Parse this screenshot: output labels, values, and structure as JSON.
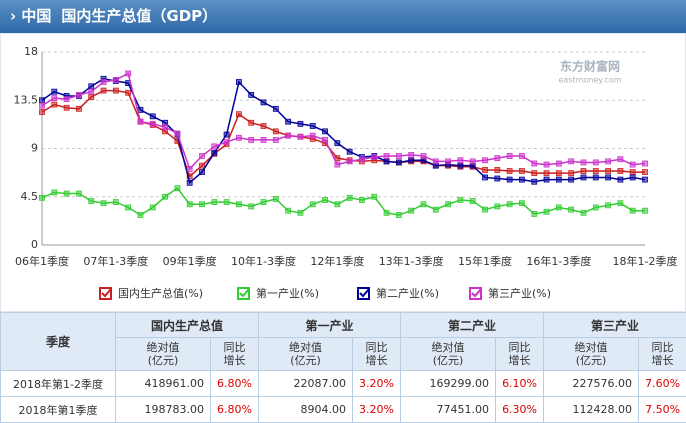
{
  "header": {
    "region": "中国",
    "title": "国内生产总值（GDP）"
  },
  "watermark": {
    "name": "东方财富网",
    "url": "eastmoney.com"
  },
  "chart_data": {
    "type": "line",
    "categories": [
      "06年1季度",
      null,
      null,
      null,
      null,
      null,
      "07年1-3季度",
      null,
      null,
      null,
      null,
      null,
      "09年1季度",
      null,
      null,
      null,
      null,
      null,
      "10年1-3季度",
      null,
      null,
      null,
      null,
      null,
      "12年1季度",
      null,
      null,
      null,
      null,
      null,
      "13年1-3季度",
      null,
      null,
      null,
      null,
      null,
      "15年1季度",
      null,
      null,
      null,
      null,
      null,
      "16年1-3季度",
      null,
      null,
      null,
      null,
      null,
      null,
      "18年1-2季度"
    ],
    "series": [
      {
        "name": "国内生产总值(%)",
        "color": "#cc1f1f",
        "values": [
          12.4,
          13.1,
          12.8,
          12.7,
          13.8,
          14.4,
          14.4,
          14.2,
          11.5,
          11.2,
          10.6,
          9.7,
          6.4,
          7.4,
          8.5,
          9.4,
          12.2,
          11.4,
          11.1,
          10.6,
          10.2,
          10.1,
          9.9,
          9.5,
          8.1,
          7.9,
          7.8,
          7.9,
          7.8,
          7.7,
          7.8,
          7.8,
          7.4,
          7.4,
          7.3,
          7.3,
          7.0,
          7.0,
          6.9,
          6.9,
          6.7,
          6.7,
          6.7,
          6.7,
          6.9,
          6.9,
          6.9,
          6.9,
          6.8,
          6.8
        ]
      },
      {
        "name": "第一产业(%)",
        "color": "#33cc33",
        "values": [
          4.4,
          4.9,
          4.8,
          4.8,
          4.1,
          3.9,
          4.0,
          3.5,
          2.8,
          3.5,
          4.5,
          5.3,
          3.8,
          3.8,
          4.0,
          4.0,
          3.8,
          3.6,
          4.0,
          4.3,
          3.2,
          3.0,
          3.8,
          4.2,
          3.8,
          4.4,
          4.2,
          4.5,
          3.0,
          2.8,
          3.2,
          3.8,
          3.3,
          3.8,
          4.2,
          4.1,
          3.3,
          3.6,
          3.8,
          3.9,
          2.9,
          3.1,
          3.5,
          3.3,
          3.0,
          3.5,
          3.7,
          3.9,
          3.2,
          3.2
        ]
      },
      {
        "name": "第二产业(%)",
        "color": "#000099",
        "values": [
          13.5,
          14.3,
          13.9,
          13.9,
          14.8,
          15.5,
          15.3,
          15.1,
          12.6,
          12.0,
          11.4,
          10.3,
          5.8,
          6.8,
          8.6,
          10.3,
          15.2,
          14.0,
          13.3,
          12.7,
          11.5,
          11.3,
          11.1,
          10.6,
          9.5,
          8.7,
          8.2,
          8.3,
          7.8,
          7.7,
          7.9,
          7.9,
          7.4,
          7.5,
          7.4,
          7.4,
          6.3,
          6.2,
          6.1,
          6.1,
          5.9,
          6.1,
          6.1,
          6.1,
          6.3,
          6.3,
          6.3,
          6.1,
          6.3,
          6.1
        ]
      },
      {
        "name": "第三产业(%)",
        "color": "#cc33cc",
        "values": [
          13.0,
          13.7,
          13.6,
          14.0,
          14.3,
          15.2,
          15.4,
          16.0,
          11.5,
          11.3,
          11.0,
          10.4,
          7.1,
          8.3,
          9.2,
          9.6,
          10.0,
          9.8,
          9.8,
          9.8,
          10.2,
          10.1,
          10.2,
          9.8,
          7.5,
          7.8,
          8.0,
          8.2,
          8.3,
          8.3,
          8.4,
          8.3,
          7.8,
          7.8,
          7.9,
          7.8,
          7.9,
          8.1,
          8.3,
          8.3,
          7.6,
          7.5,
          7.6,
          7.8,
          7.7,
          7.7,
          7.8,
          8.0,
          7.5,
          7.6
        ]
      }
    ],
    "ylim": [
      0,
      18
    ],
    "yticks": [
      0,
      4.5,
      9,
      13.5,
      18
    ],
    "grid": true
  },
  "table": {
    "headers": [
      "季度",
      "国内生产总值",
      "第一产业",
      "第二产业",
      "第三产业"
    ],
    "subheaders": {
      "absolute": [
        "绝对值",
        "(亿元)"
      ],
      "growth": [
        "同比",
        "增长"
      ]
    },
    "rows": [
      [
        "2018年第1-2季度",
        "418961.00",
        "6.80%",
        "22087.00",
        "3.20%",
        "169299.00",
        "6.10%",
        "227576.00",
        "7.60%"
      ],
      [
        "2018年第1季度",
        "198783.00",
        "6.80%",
        "8904.00",
        "3.20%",
        "77451.00",
        "6.30%",
        "112428.00",
        "7.50%"
      ]
    ]
  }
}
